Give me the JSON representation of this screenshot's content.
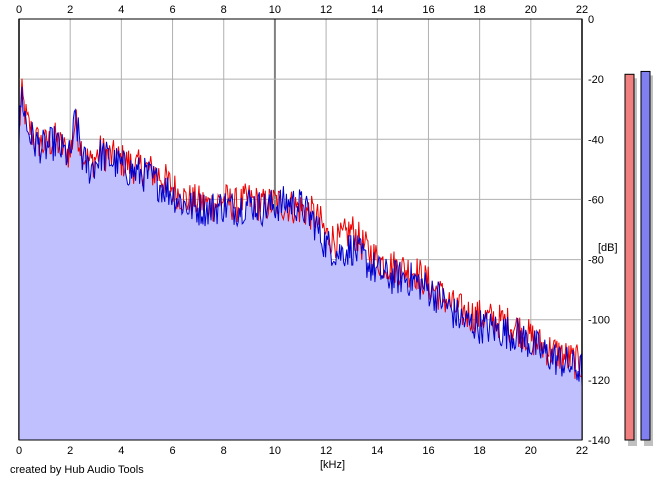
{
  "chart_data": {
    "type": "area",
    "xlabel": "[kHz]",
    "ylabel": "[dB]",
    "credit": "created by Hub Audio Tools",
    "xlim": [
      0,
      22
    ],
    "ylim": [
      -140,
      0
    ],
    "xticks": [
      "0",
      "2",
      "4",
      "6",
      "8",
      "10",
      "12",
      "14",
      "16",
      "18",
      "20",
      "22"
    ],
    "yticks": [
      "0",
      "-20",
      "-40",
      "-60",
      "-80",
      "-100",
      "-120",
      "-140"
    ],
    "grid": true,
    "level_meters": [
      {
        "channel": "left",
        "color": "#f08080",
        "value_db": -12
      },
      {
        "channel": "right",
        "color": "#8080f0",
        "value_db": -11
      }
    ],
    "series": [
      {
        "color": "#ee0000",
        "x": [
          0,
          0.1,
          0.3,
          0.6,
          1.0,
          1.4,
          1.7,
          2.0,
          2.2,
          2.5,
          2.8,
          3.2,
          3.6,
          4.0,
          4.5,
          5.0,
          5.5,
          6.0,
          6.5,
          7.0,
          7.5,
          8.0,
          8.5,
          9.0,
          9.5,
          10.0,
          10.5,
          11.0,
          11.5,
          11.8,
          12.0,
          12.5,
          13.0,
          13.5,
          14.0,
          14.5,
          15.0,
          15.5,
          16.0,
          16.5,
          17.0,
          17.5,
          18.0,
          18.5,
          19.0,
          19.5,
          20.0,
          20.5,
          21.0,
          21.5,
          22.0
        ],
        "y": [
          -38,
          -25,
          -34,
          -40,
          -42,
          -40,
          -43,
          -45,
          -34,
          -45,
          -48,
          -44,
          -46,
          -47,
          -49,
          -50,
          -52,
          -56,
          -60,
          -61,
          -62,
          -60,
          -62,
          -60,
          -62,
          -61,
          -62,
          -63,
          -65,
          -68,
          -72,
          -74,
          -70,
          -76,
          -80,
          -82,
          -83,
          -84,
          -88,
          -92,
          -96,
          -98,
          -99,
          -100,
          -101,
          -103,
          -106,
          -109,
          -111,
          -113,
          -115
        ]
      },
      {
        "color": "#0000cc",
        "x": [
          0,
          0.1,
          0.3,
          0.6,
          1.0,
          1.4,
          1.7,
          2.0,
          2.2,
          2.5,
          2.8,
          3.2,
          3.6,
          4.0,
          4.5,
          5.0,
          5.5,
          6.0,
          6.5,
          7.0,
          7.5,
          8.0,
          8.5,
          9.0,
          9.5,
          10.0,
          10.5,
          11.0,
          11.5,
          11.8,
          12.0,
          12.5,
          13.0,
          13.5,
          14.0,
          14.5,
          15.0,
          15.5,
          16.0,
          16.5,
          17.0,
          17.5,
          18.0,
          18.5,
          19.0,
          19.5,
          20.0,
          20.5,
          21.0,
          21.5,
          22.0
        ],
        "y": [
          -40,
          -24,
          -36,
          -41,
          -43,
          -41,
          -44,
          -46,
          -33,
          -47,
          -50,
          -45,
          -47,
          -49,
          -51,
          -52,
          -55,
          -58,
          -62,
          -63,
          -63,
          -62,
          -63,
          -61,
          -63,
          -62,
          -61,
          -62,
          -67,
          -72,
          -75,
          -78,
          -76,
          -80,
          -84,
          -86,
          -86,
          -87,
          -90,
          -93,
          -98,
          -101,
          -102,
          -103,
          -104,
          -105,
          -108,
          -111,
          -113,
          -115,
          -117
        ]
      }
    ]
  }
}
